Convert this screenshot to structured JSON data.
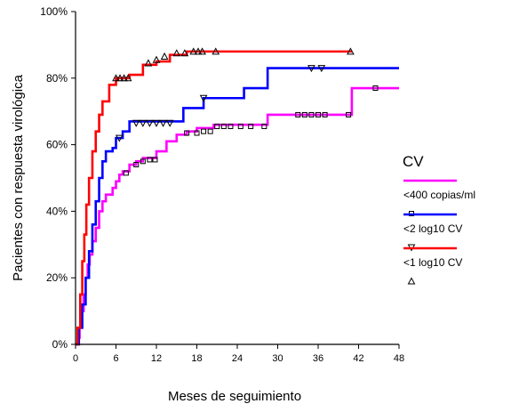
{
  "chart_data": {
    "type": "line",
    "subtype": "kaplan-meier-step",
    "xlabel": "Meses de seguimiento",
    "ylabel": "Pacientes con respuesta virológica",
    "xlim": [
      0,
      48
    ],
    "ylim": [
      0,
      100
    ],
    "x_ticks": [
      "0",
      "6",
      "12",
      "18",
      "24",
      "30",
      "36",
      "42",
      "48"
    ],
    "y_ticks": [
      "0%",
      "20%",
      "40%",
      "60%",
      "80%",
      "100%"
    ],
    "grid": false,
    "legend": {
      "title": "CV",
      "position": "right"
    },
    "series": [
      {
        "name": "<400 copias/ml",
        "color": "#ff00ff",
        "censor_marker": "square",
        "x": [
          0,
          0.3,
          0.6,
          0.9,
          1.2,
          1.5,
          1.8,
          2.1,
          2.5,
          3.0,
          3.5,
          4.0,
          4.5,
          5.5,
          6.0,
          6.5,
          7.0,
          8.0,
          9.0,
          10.0,
          12.0,
          13.5,
          15.0,
          16.5,
          18.0,
          20.5,
          23.0,
          28.5,
          41.0,
          48.0
        ],
        "y": [
          0,
          2,
          5,
          10,
          15,
          20,
          24,
          27,
          31,
          35,
          40,
          43,
          45,
          47,
          49,
          51,
          52,
          54,
          55,
          56,
          58,
          61,
          63,
          64,
          65,
          66,
          66,
          69,
          77,
          77
        ],
        "censored_x": [
          7.5,
          9,
          10,
          11,
          11.8,
          16.5,
          18,
          19,
          20,
          21,
          22,
          23,
          24.5,
          26,
          28,
          33,
          34,
          35,
          36,
          37,
          40.5,
          44.5
        ],
        "censored_y": [
          51.5,
          54,
          55,
          55.5,
          55.5,
          63.5,
          63.5,
          64,
          64,
          65.5,
          65.5,
          65.5,
          65.5,
          65.5,
          65.5,
          69,
          69,
          69,
          69,
          69,
          69,
          77
        ]
      },
      {
        "name": "<2 log10 CV",
        "color": "#0000ff",
        "censor_marker": "triangle-down",
        "x": [
          0,
          0.5,
          1.0,
          1.5,
          2.0,
          2.5,
          3.0,
          3.5,
          4.0,
          4.5,
          5.5,
          6.0,
          7.0,
          8.0,
          9.0,
          10.0,
          16.0,
          19.0,
          25.0,
          28.5,
          48.0
        ],
        "y": [
          0,
          5,
          12,
          20,
          28,
          36,
          43,
          50,
          55,
          58,
          59,
          62,
          64,
          67,
          67,
          67,
          71,
          74,
          77,
          83,
          83
        ],
        "censored_x": [
          6.5,
          9,
          10,
          11,
          12,
          13,
          14,
          19,
          35,
          36.5
        ],
        "censored_y": [
          62,
          66.5,
          66.5,
          66.5,
          66.5,
          66.5,
          66.5,
          74,
          83,
          83
        ]
      },
      {
        "name": "<1 log10 CV",
        "color": "#ff0000",
        "censor_marker": "triangle-up",
        "x": [
          0,
          0.3,
          0.7,
          1.0,
          1.3,
          1.6,
          2.0,
          2.5,
          3.0,
          3.5,
          4.0,
          5.0,
          6.0,
          8.0,
          10.0,
          12.0,
          14.0,
          16.5,
          18.0,
          41.0
        ],
        "y": [
          0,
          5,
          15,
          25,
          33,
          42,
          50,
          58,
          64,
          69,
          73,
          78,
          80,
          81,
          84,
          85,
          87,
          88,
          88,
          88
        ],
        "censored_x": [
          6,
          6.6,
          7.2,
          7.8,
          10.8,
          12,
          13.2,
          15,
          16.2,
          17.5,
          18.2,
          18.8,
          20.8,
          40.8
        ],
        "censored_y": [
          80,
          80,
          80,
          80,
          84.5,
          85.5,
          86.5,
          87.5,
          87.5,
          88,
          88,
          88,
          88,
          88
        ]
      }
    ]
  }
}
